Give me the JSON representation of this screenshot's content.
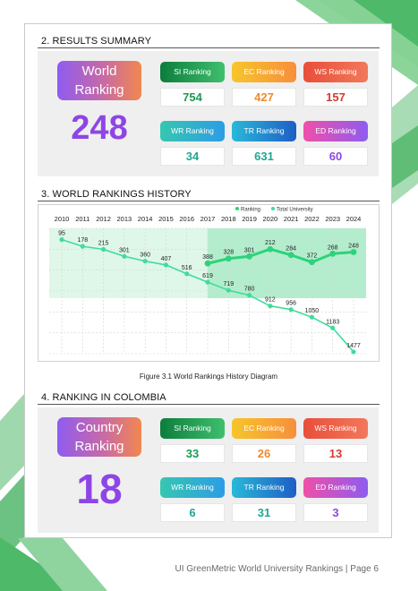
{
  "results_summary": {
    "title": "2. RESULTS SUMMARY",
    "main_label": "World Ranking",
    "main_value": "248",
    "cards": [
      {
        "key": "si",
        "label": "SI Ranking",
        "value": "754"
      },
      {
        "key": "ec",
        "label": "EC Ranking",
        "value": "427"
      },
      {
        "key": "ws",
        "label": "WS Ranking",
        "value": "157"
      },
      {
        "key": "wr",
        "label": "WR Ranking",
        "value": "34"
      },
      {
        "key": "tr",
        "label": "TR Ranking",
        "value": "631"
      },
      {
        "key": "ed",
        "label": "ED Ranking",
        "value": "60"
      }
    ]
  },
  "history": {
    "title": "3. WORLD RANKINGS HISTORY",
    "caption": "Figure 3.1 World Rankings History Diagram"
  },
  "chart_data": {
    "type": "line",
    "x": [
      "2010",
      "2011",
      "2012",
      "2013",
      "2014",
      "2015",
      "2016",
      "2017",
      "2018",
      "2019",
      "2020",
      "2021",
      "2022",
      "2023",
      "2024"
    ],
    "series": [
      {
        "name": "Ranking",
        "x": [
          "2017",
          "2018",
          "2019",
          "2020",
          "2021",
          "2022",
          "2023",
          "2024"
        ],
        "values": [
          388,
          328,
          301,
          212,
          284,
          372,
          268,
          248
        ],
        "color": "#2ed27a"
      },
      {
        "name": "Total University",
        "x": [
          "2010",
          "2011",
          "2012",
          "2013",
          "2014",
          "2015",
          "2016",
          "2017",
          "2018",
          "2019",
          "2020",
          "2021",
          "2022",
          "2023",
          "2024"
        ],
        "values": [
          95,
          178,
          215,
          301,
          360,
          407,
          516,
          619,
          719,
          780,
          912,
          956,
          1050,
          1183,
          1477
        ],
        "color": "#3fdc9c"
      }
    ],
    "y_reversed": true,
    "ylim": [
      0,
      1500
    ],
    "legend_position": "top",
    "grid": true
  },
  "colombia": {
    "title": "4. RANKING IN COLOMBIA",
    "main_label": "Country Ranking",
    "main_value": "18",
    "cards": [
      {
        "key": "si",
        "label": "SI Ranking",
        "value": "33"
      },
      {
        "key": "ec",
        "label": "EC Ranking",
        "value": "26"
      },
      {
        "key": "ws",
        "label": "WS Ranking",
        "value": "13"
      },
      {
        "key": "wr",
        "label": "WR Ranking",
        "value": "6"
      },
      {
        "key": "tr",
        "label": "TR Ranking",
        "value": "31"
      },
      {
        "key": "ed",
        "label": "ED Ranking",
        "value": "3"
      }
    ]
  },
  "footer": "UI GreenMetric World University Rankings | Page 6"
}
